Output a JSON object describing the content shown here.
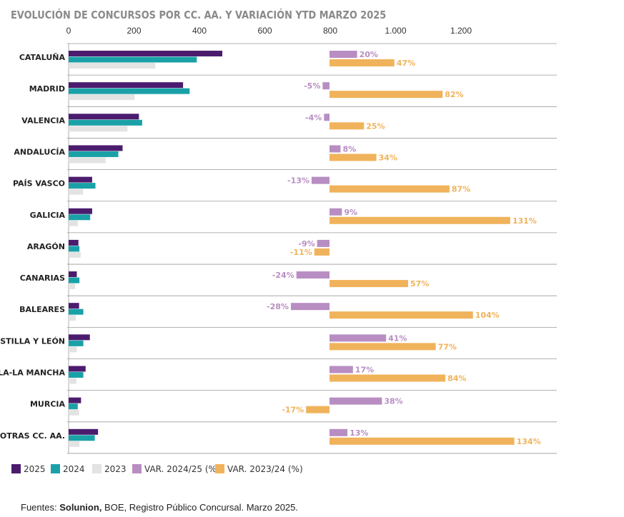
{
  "title": "EVOLUCIÓN DE CONCURSOS POR CC. AA. Y VARIACIÓN YTD MARZO 2025",
  "source": {
    "prefix": "Fuentes: ",
    "bold": "Solunion,",
    "rest": " BOE, Registro Público Concursal. Marzo 2025."
  },
  "colors": {
    "s2025": "#4b1c6e",
    "s2024": "#1aa1a8",
    "s2023": "#e3e3e3",
    "var2425": "#b88ec2",
    "var2324": "#f0b35b"
  },
  "chart_data": [
    {
      "type": "bar",
      "orientation": "horizontal",
      "categories": [
        "CATALUÑA",
        "MADRID",
        "VALENCIA",
        "ANDALUCÍA",
        "PAÍS VASCO",
        "GALICIA",
        "ARAGÓN",
        "CANARIAS",
        "BALEARES",
        "CASTILLA Y LEÓN",
        "CASTILLA-LA MANCHA",
        "MURCIA",
        "OTRAS CC. AA."
      ],
      "series": [
        {
          "name": "2025",
          "values": [
            470,
            350,
            215,
            165,
            72,
            72,
            30,
            25,
            32,
            65,
            52,
            38,
            90
          ]
        },
        {
          "name": "2024",
          "values": [
            392,
            370,
            225,
            152,
            82,
            66,
            33,
            33,
            45,
            45,
            45,
            28,
            80
          ]
        },
        {
          "name": "2023",
          "values": [
            265,
            202,
            180,
            113,
            44,
            28,
            37,
            20,
            22,
            25,
            24,
            32,
            33
          ]
        }
      ],
      "xticks": [
        "0",
        "200",
        "400",
        "600",
        "800",
        "1.000",
        "1.200"
      ],
      "xlim": [
        0,
        1200
      ]
    },
    {
      "type": "bar",
      "orientation": "horizontal",
      "categories": [
        "CATALUÑA",
        "MADRID",
        "VALENCIA",
        "ANDALUCÍA",
        "PAÍS VASCO",
        "GALICIA",
        "ARAGÓN",
        "CANARIAS",
        "BALEARES",
        "CASTILLA Y LEÓN",
        "CASTILLA-LA MANCHA",
        "MURCIA",
        "OTRAS CC. AA."
      ],
      "series": [
        {
          "name": "VAR. 2024/25 (%)",
          "values": [
            20,
            -5,
            -4,
            8,
            -13,
            9,
            -9,
            -24,
            -28,
            41,
            17,
            38,
            13
          ],
          "labels": [
            "20%",
            "-5%",
            "-4%",
            "8%",
            "-13%",
            "9%",
            "-9%",
            "-24%",
            "-28%",
            "41%",
            "17%",
            "38%",
            "13%"
          ]
        },
        {
          "name": "VAR. 2023/24 (%)",
          "values": [
            47,
            82,
            25,
            34,
            87,
            131,
            -11,
            57,
            104,
            77,
            84,
            -17,
            134
          ],
          "labels": [
            "47%",
            "82%",
            "25%",
            "34%",
            "87%",
            "131%",
            "-11%",
            "57%",
            "104%",
            "77%",
            "84%",
            "-17%",
            "134%"
          ]
        }
      ]
    }
  ],
  "legend": [
    "2025",
    "2024",
    "2023",
    "VAR. 2024/25 (%)",
    "VAR. 2023/24 (%)"
  ]
}
